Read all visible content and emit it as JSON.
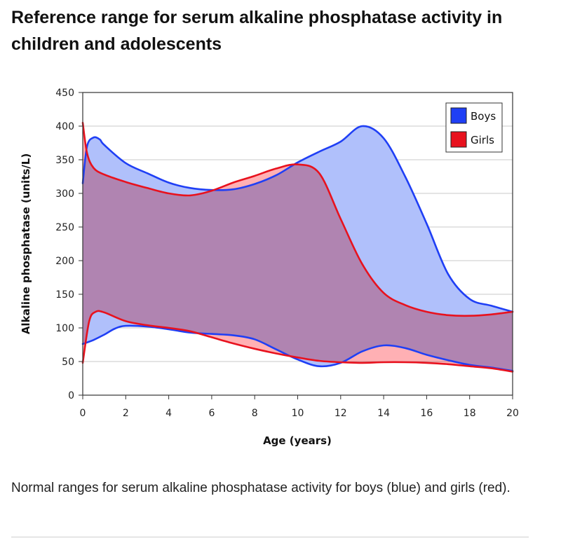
{
  "page": {
    "title": "Reference range for serum alkaline phosphatase activity in children and adolescents",
    "caption": "Normal ranges for serum alkaline phosphatase activity for boys (blue) and girls (red)."
  },
  "chart_data": {
    "type": "area",
    "xlabel": "Age (years)",
    "ylabel": "Alkaline phosphatase (units/L)",
    "xlim": [
      0,
      20
    ],
    "ylim": [
      0,
      450
    ],
    "x_ticks": [
      "0",
      "2",
      "4",
      "6",
      "8",
      "10",
      "12",
      "14",
      "16",
      "18",
      "20"
    ],
    "y_ticks": [
      "0",
      "50",
      "100",
      "150",
      "200",
      "250",
      "300",
      "350",
      "400",
      "450"
    ],
    "grid": true,
    "legend_position": "top-right",
    "series": [
      {
        "name": "Boys",
        "color": "#1f3ff5",
        "fill": "#b0c0fb",
        "upper": [
          [
            0,
            315
          ],
          [
            0.2,
            370
          ],
          [
            0.5,
            383
          ],
          [
            0.8,
            380
          ],
          [
            1,
            372
          ],
          [
            2,
            345
          ],
          [
            3,
            330
          ],
          [
            4,
            316
          ],
          [
            5,
            308
          ],
          [
            6,
            305
          ],
          [
            7,
            306
          ],
          [
            8,
            314
          ],
          [
            9,
            327
          ],
          [
            10,
            346
          ],
          [
            11,
            362
          ],
          [
            12,
            377
          ],
          [
            13,
            400
          ],
          [
            14,
            382
          ],
          [
            15,
            325
          ],
          [
            16,
            255
          ],
          [
            17,
            180
          ],
          [
            18,
            143
          ],
          [
            19,
            133
          ],
          [
            20,
            124
          ]
        ],
        "lower": [
          [
            0,
            76
          ],
          [
            0.5,
            82
          ],
          [
            1,
            90
          ],
          [
            1.5,
            99
          ],
          [
            2,
            103
          ],
          [
            3,
            102
          ],
          [
            4,
            98
          ],
          [
            5,
            93
          ],
          [
            6,
            91
          ],
          [
            7,
            89
          ],
          [
            8,
            83
          ],
          [
            9,
            68
          ],
          [
            10,
            53
          ],
          [
            11,
            43
          ],
          [
            12,
            48
          ],
          [
            13,
            65
          ],
          [
            14,
            74
          ],
          [
            15,
            70
          ],
          [
            16,
            60
          ],
          [
            17,
            52
          ],
          [
            18,
            45
          ],
          [
            19,
            41
          ],
          [
            20,
            36
          ]
        ]
      },
      {
        "name": "Girls",
        "color": "#e8121e",
        "fill": "#ffb0b4",
        "upper": [
          [
            0,
            405
          ],
          [
            0.2,
            360
          ],
          [
            0.5,
            338
          ],
          [
            1,
            328
          ],
          [
            2,
            317
          ],
          [
            3,
            308
          ],
          [
            4,
            300
          ],
          [
            5,
            297
          ],
          [
            6,
            304
          ],
          [
            7,
            316
          ],
          [
            8,
            326
          ],
          [
            9,
            337
          ],
          [
            10,
            343
          ],
          [
            11,
            330
          ],
          [
            12,
            262
          ],
          [
            13,
            195
          ],
          [
            14,
            152
          ],
          [
            15,
            134
          ],
          [
            16,
            124
          ],
          [
            17,
            119
          ],
          [
            18,
            118
          ],
          [
            19,
            120
          ],
          [
            20,
            124
          ]
        ],
        "lower": [
          [
            0,
            48
          ],
          [
            0.3,
            110
          ],
          [
            0.6,
            124
          ],
          [
            1,
            123
          ],
          [
            2,
            110
          ],
          [
            3,
            104
          ],
          [
            4,
            100
          ],
          [
            5,
            95
          ],
          [
            6,
            86
          ],
          [
            7,
            77
          ],
          [
            8,
            69
          ],
          [
            9,
            62
          ],
          [
            10,
            56
          ],
          [
            11,
            51
          ],
          [
            12,
            49
          ],
          [
            13,
            48
          ],
          [
            14,
            49
          ],
          [
            15,
            49
          ],
          [
            16,
            48
          ],
          [
            17,
            46
          ],
          [
            18,
            43
          ],
          [
            19,
            40
          ],
          [
            20,
            35
          ]
        ]
      }
    ]
  }
}
